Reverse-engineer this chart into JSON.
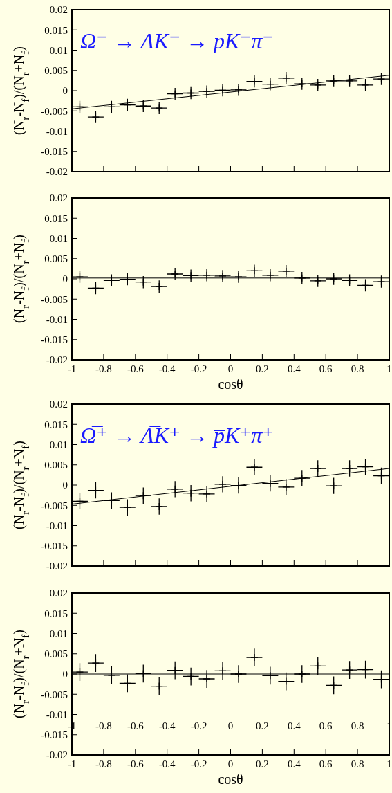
{
  "chart_data": [
    {
      "type": "scatter",
      "title": "Ω⁻ → ΛK⁻ → pK⁻π⁻",
      "ylabel": "(N$_{r}$-N$_{f}$)/(N$_{r}$+N$_{f}$)",
      "xlim": [
        -1,
        1
      ],
      "ylim": [
        -0.02,
        0.02
      ],
      "xticks": [
        -1,
        -0.8,
        -0.6,
        -0.4,
        -0.2,
        0,
        0.2,
        0.4,
        0.6,
        0.8,
        1
      ],
      "yticks": [
        -0.02,
        -0.015,
        -0.01,
        -0.005,
        0,
        0.005,
        0.01,
        0.015,
        0.02
      ],
      "tick_labels": "y",
      "grid": false,
      "series": [
        {
          "type": "scatter",
          "marker": "cross",
          "color": "#000000",
          "x": [
            -0.95,
            -0.85,
            -0.75,
            -0.65,
            -0.55,
            -0.45,
            -0.35,
            -0.25,
            -0.15,
            -0.05,
            0.05,
            0.15,
            0.25,
            0.35,
            0.45,
            0.55,
            0.65,
            0.75,
            0.85,
            0.95
          ],
          "values": [
            -0.004,
            -0.0065,
            -0.004,
            -0.0035,
            -0.0038,
            -0.0043,
            -0.0008,
            -0.0006,
            -0.0002,
            0.0001,
            0.0002,
            0.0023,
            0.0016,
            0.0031,
            0.0017,
            0.0014,
            0.0024,
            0.0024,
            0.0014,
            0.0029
          ],
          "errors": [
            0.0015,
            0.0015,
            0.0015,
            0.0015,
            0.0015,
            0.0015,
            0.0015,
            0.0015,
            0.0015,
            0.0015,
            0.0015,
            0.0015,
            0.0015,
            0.0015,
            0.0015,
            0.0015,
            0.0015,
            0.0015,
            0.0015,
            0.0015
          ],
          "xerrors": [
            0.05,
            0.05,
            0.05,
            0.05,
            0.05,
            0.05,
            0.05,
            0.05,
            0.05,
            0.05,
            0.05,
            0.05,
            0.05,
            0.05,
            0.05,
            0.05,
            0.05,
            0.05,
            0.05,
            0.05
          ]
        },
        {
          "type": "line",
          "color": "#000000",
          "x": [
            -1,
            1
          ],
          "values": [
            -0.0045,
            0.0038
          ]
        }
      ]
    },
    {
      "type": "scatter",
      "ylabel": "(N$_{r}$-N$_{f}$)/(N$_{r}$+N$_{f}$)",
      "xlabel": "cosθ",
      "xlim": [
        -1,
        1
      ],
      "ylim": [
        -0.02,
        0.02
      ],
      "xticks": [
        -1,
        -0.8,
        -0.6,
        -0.4,
        -0.2,
        0,
        0.2,
        0.4,
        0.6,
        0.8,
        1
      ],
      "yticks": [
        -0.02,
        -0.015,
        -0.01,
        -0.005,
        0,
        0.005,
        0.01,
        0.015,
        0.02
      ],
      "grid": false,
      "series": [
        {
          "type": "scatter",
          "marker": "cross",
          "color": "#000000",
          "x": [
            -0.95,
            -0.85,
            -0.75,
            -0.65,
            -0.55,
            -0.45,
            -0.35,
            -0.25,
            -0.15,
            -0.05,
            0.05,
            0.15,
            0.25,
            0.35,
            0.45,
            0.55,
            0.65,
            0.75,
            0.85,
            0.95
          ],
          "values": [
            0.0005,
            -0.0023,
            -0.0004,
            -0.0001,
            -0.0008,
            -0.0019,
            0.0012,
            0.0008,
            0.0009,
            0.0007,
            0.0005,
            0.002,
            0.0009,
            0.0019,
            0.0002,
            -0.0005,
            0,
            -0.0004,
            -0.0016,
            -0.0007
          ],
          "errors": [
            0.0015,
            0.0015,
            0.0015,
            0.0015,
            0.0015,
            0.0015,
            0.0015,
            0.0015,
            0.0015,
            0.0015,
            0.0015,
            0.0015,
            0.0015,
            0.0015,
            0.0015,
            0.0015,
            0.0015,
            0.0015,
            0.0015,
            0.0015
          ],
          "xerrors": [
            0.05,
            0.05,
            0.05,
            0.05,
            0.05,
            0.05,
            0.05,
            0.05,
            0.05,
            0.05,
            0.05,
            0.05,
            0.05,
            0.05,
            0.05,
            0.05,
            0.05,
            0.05,
            0.05,
            0.05
          ]
        },
        {
          "type": "line",
          "color": "#000000",
          "x": [
            -1,
            1
          ],
          "values": [
            0.0002,
            0.0002
          ]
        }
      ]
    },
    {
      "type": "scatter",
      "title": "Ω̅⁺ → Λ̅K⁺ → p̅K⁺π⁺",
      "ylabel": "(N$_{r}$-N$_{f}$)/(N$_{r}$+N$_{f}$)",
      "xlim": [
        -1,
        1
      ],
      "ylim": [
        -0.02,
        0.02
      ],
      "xticks": [
        -1,
        -0.8,
        -0.6,
        -0.4,
        -0.2,
        0,
        0.2,
        0.4,
        0.6,
        0.8,
        1
      ],
      "yticks": [
        -0.02,
        -0.015,
        -0.01,
        -0.005,
        0,
        0.005,
        0.01,
        0.015,
        0.02
      ],
      "tick_labels": "y",
      "grid": false,
      "series": [
        {
          "type": "scatter",
          "marker": "cross",
          "color": "#000000",
          "x": [
            -0.95,
            -0.85,
            -0.75,
            -0.65,
            -0.55,
            -0.45,
            -0.35,
            -0.25,
            -0.15,
            -0.05,
            0.05,
            0.15,
            0.25,
            0.35,
            0.45,
            0.55,
            0.65,
            0.75,
            0.85,
            0.95
          ],
          "values": [
            -0.004,
            -0.0013,
            -0.0038,
            -0.0055,
            -0.0026,
            -0.0053,
            -0.001,
            -0.002,
            -0.0022,
            0.0002,
            -0.0001,
            0.0044,
            0.0004,
            -0.0005,
            0.0017,
            0.0041,
            -0.0002,
            0.0041,
            0.0045,
            0.0023
          ],
          "errors": [
            0.002,
            0.002,
            0.002,
            0.002,
            0.002,
            0.002,
            0.002,
            0.002,
            0.002,
            0.002,
            0.002,
            0.002,
            0.002,
            0.002,
            0.002,
            0.002,
            0.002,
            0.002,
            0.002,
            0.002
          ],
          "xerrors": [
            0.05,
            0.05,
            0.05,
            0.05,
            0.05,
            0.05,
            0.05,
            0.05,
            0.05,
            0.05,
            0.05,
            0.05,
            0.05,
            0.05,
            0.05,
            0.05,
            0.05,
            0.05,
            0.05,
            0.05
          ]
        },
        {
          "type": "line",
          "color": "#000000",
          "x": [
            -1,
            1
          ],
          "values": [
            -0.0047,
            0.0041
          ]
        }
      ]
    },
    {
      "type": "scatter",
      "ylabel": "(N$_{r}$-N$_{f}$)/(N$_{r}$+N$_{f}$)",
      "xlabel": "cosθ",
      "xlim": [
        -1,
        1
      ],
      "ylim": [
        -0.02,
        0.02
      ],
      "xticks": [
        -1,
        -0.8,
        -0.6,
        -0.4,
        -0.2,
        0,
        0.2,
        0.4,
        0.6,
        0.8,
        1
      ],
      "yticks": [
        -0.02,
        -0.015,
        -0.01,
        -0.005,
        0,
        0.005,
        0.01,
        0.015,
        0.02
      ],
      "x2lim": [
        -1,
        1
      ],
      "x2ticks": [
        -1,
        -0.8,
        -0.6,
        -0.4,
        -0.2,
        0,
        0.2,
        0.4,
        0.6,
        0.8,
        1
      ],
      "grid": false,
      "series": [
        {
          "type": "scatter",
          "marker": "cross",
          "color": "#000000",
          "x": [
            -0.95,
            -0.85,
            -0.75,
            -0.65,
            -0.55,
            -0.45,
            -0.35,
            -0.25,
            -0.15,
            -0.05,
            0.05,
            0.15,
            0.25,
            0.35,
            0.45,
            0.55,
            0.65,
            0.75,
            0.85,
            0.95
          ],
          "values": [
            0.0005,
            0.0027,
            -0.0003,
            -0.0023,
            0.0001,
            -0.003,
            0.0009,
            -0.0006,
            -0.0012,
            0.0008,
            0,
            0.0041,
            -0.0004,
            -0.0018,
            0,
            0.002,
            -0.0028,
            0.001,
            0.0011,
            -0.0013
          ],
          "errors": [
            0.0022,
            0.0022,
            0.0022,
            0.0022,
            0.0022,
            0.0022,
            0.0022,
            0.0022,
            0.0022,
            0.0022,
            0.0022,
            0.0022,
            0.0022,
            0.0022,
            0.0022,
            0.0022,
            0.0022,
            0.0022,
            0.0022,
            0.0022
          ],
          "xerrors": [
            0.05,
            0.05,
            0.05,
            0.05,
            0.05,
            0.05,
            0.05,
            0.05,
            0.05,
            0.05,
            0.05,
            0.05,
            0.05,
            0.05,
            0.05,
            0.05,
            0.05,
            0.05,
            0.05,
            0.05
          ]
        },
        {
          "type": "line",
          "color": "#000000",
          "x": [
            -1,
            1
          ],
          "values": [
            0,
            0
          ]
        }
      ]
    }
  ]
}
